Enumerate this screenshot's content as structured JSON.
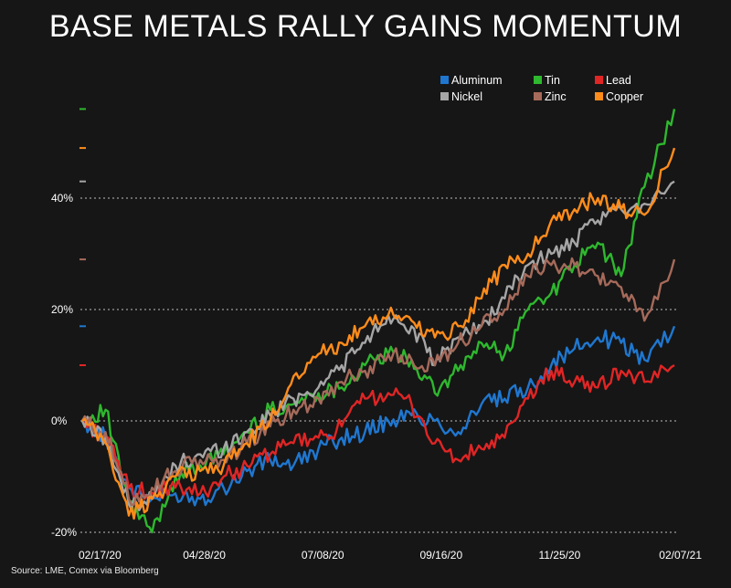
{
  "chart_data": {
    "type": "line",
    "title": "BASE METALS RALLY GAINS MOMENTUM",
    "source": "Source: LME, Comex via Bloomberg",
    "xlabel": "",
    "ylabel": "",
    "x_tick_labels": [
      "02/17/20",
      "04/28/20",
      "07/08/20",
      "09/16/20",
      "11/25/20",
      "02/07/21"
    ],
    "y_ticks": [
      {
        "value": -20,
        "label": "-20%"
      },
      {
        "value": 0,
        "label": "0%"
      },
      {
        "value": 20,
        "label": "20%"
      },
      {
        "value": 40,
        "label": "40%"
      }
    ],
    "ylim": [
      -20,
      57
    ],
    "grid": "horizontal dotted",
    "legend_position": "top-right",
    "x": [
      "2020-02-17",
      "2020-03-02",
      "2020-03-16",
      "2020-03-30",
      "2020-04-13",
      "2020-04-28",
      "2020-05-12",
      "2020-05-26",
      "2020-06-09",
      "2020-06-23",
      "2020-07-08",
      "2020-07-22",
      "2020-08-05",
      "2020-08-19",
      "2020-09-02",
      "2020-09-16",
      "2020-09-30",
      "2020-10-14",
      "2020-10-28",
      "2020-11-11",
      "2020-11-25",
      "2020-12-09",
      "2020-12-23",
      "2021-01-06",
      "2021-01-20",
      "2021-02-07"
    ],
    "series": [
      {
        "name": "Aluminum",
        "color": "#1f77d0",
        "end_marker": 17,
        "values": [
          0,
          -3,
          -12,
          -14,
          -13,
          -14,
          -12,
          -9,
          -7,
          -8,
          -5,
          -3,
          -2,
          0,
          1,
          0,
          -2,
          3,
          4,
          6,
          10,
          13,
          15,
          14,
          11,
          17
        ]
      },
      {
        "name": "Tin",
        "color": "#2eb82e",
        "end_marker": 56,
        "values": [
          0,
          2,
          -15,
          -20,
          -10,
          -8,
          -6,
          -2,
          2,
          3,
          5,
          6,
          10,
          12,
          11,
          5,
          9,
          14,
          12,
          20,
          23,
          28,
          32,
          26,
          42,
          56
        ]
      },
      {
        "name": "Lead",
        "color": "#e02525",
        "end_marker": 10,
        "values": [
          0,
          -3,
          -12,
          -13,
          -12,
          -13,
          -10,
          -8,
          -6,
          -4,
          -3,
          -1,
          4,
          5,
          3,
          -4,
          -7,
          -5,
          -3,
          4,
          9,
          7,
          6,
          9,
          7,
          10
        ]
      },
      {
        "name": "Nickel",
        "color": "#a6a6a6",
        "end_marker": 43,
        "values": [
          0,
          -3,
          -15,
          -14,
          -8,
          -6,
          -5,
          -2,
          1,
          4,
          6,
          10,
          14,
          19,
          17,
          10,
          15,
          17,
          22,
          28,
          30,
          32,
          36,
          38,
          39,
          43
        ]
      },
      {
        "name": "Zinc",
        "color": "#a66a5a",
        "end_marker": 29,
        "values": [
          0,
          -2,
          -14,
          -12,
          -9,
          -7,
          -7,
          -4,
          -1,
          2,
          4,
          7,
          9,
          12,
          11,
          10,
          14,
          17,
          20,
          26,
          28,
          28,
          26,
          24,
          18,
          29
        ]
      },
      {
        "name": "Copper",
        "color": "#ff8c1a",
        "end_marker": 49,
        "values": [
          0,
          -4,
          -17,
          -14,
          -10,
          -9,
          -8,
          -4,
          0,
          8,
          12,
          14,
          17,
          19,
          18,
          15,
          17,
          22,
          28,
          30,
          36,
          38,
          40,
          38,
          37,
          49
        ]
      }
    ]
  }
}
